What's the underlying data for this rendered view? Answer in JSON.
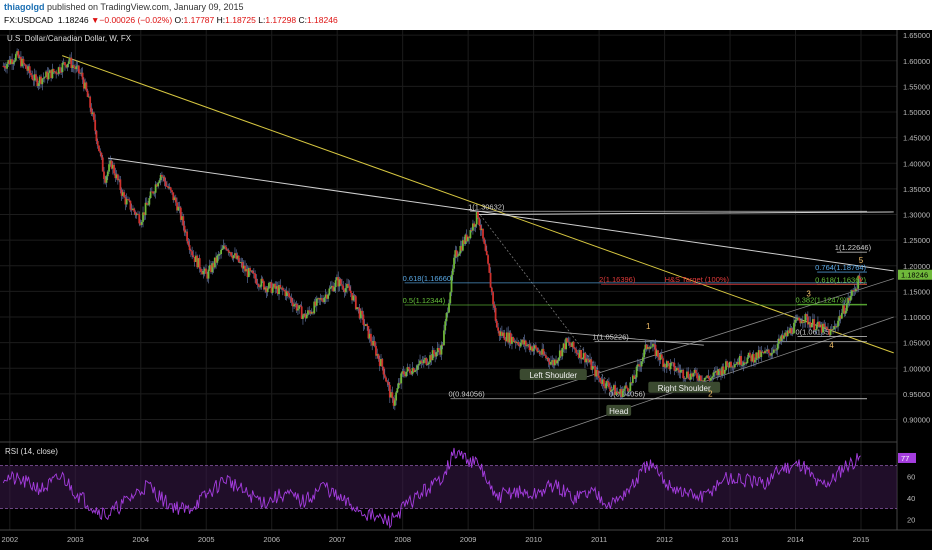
{
  "header": {
    "author": "thiagolgd",
    "published": "published on TradingView.com, January 09, 2015",
    "symbol": "FX:USDCAD",
    "last": "1.18246",
    "change": "−0.00026 (−0.02%)",
    "o_label": "O:",
    "o": "1.17787",
    "h_label": "H:",
    "h": "1.18725",
    "l_label": "L:",
    "l": "1.17298",
    "c_label": "C:",
    "c": "1.18246"
  },
  "colors": {
    "background": "#000000",
    "up_candle": "#6fb83a",
    "down_candle": "#d0312d",
    "trendline_yellow": "#d6c640",
    "trendline_white": "#cfcfcf",
    "fib_blue": "#5aa9e6",
    "fib_green": "#66c23a",
    "fib_red": "#e03a3a",
    "rsi_line": "#a53ddf",
    "rsi_band": "#3a1a4a"
  },
  "chart_data": [
    {
      "type": "candlestick",
      "title": "U.S. Dollar/Canadian Dollar, W, FX",
      "ylim": [
        0.86,
        1.66
      ],
      "y_ticks": [
        "1.65000",
        "1.60000",
        "1.55000",
        "1.50000",
        "1.45000",
        "1.40000",
        "1.35000",
        "1.30000",
        "1.25000",
        "1.20000",
        "1.15000",
        "1.10000",
        "1.05000",
        "1.00000",
        "0.95000",
        "0.90000"
      ],
      "x_ticks": [
        "2002",
        "2003",
        "2004",
        "2005",
        "2006",
        "2007",
        "2008",
        "2009",
        "2010",
        "2011",
        "2012",
        "2013",
        "2014",
        "2015"
      ],
      "last_price_label": "1.18246",
      "price_path": [
        [
          2001.9,
          1.59
        ],
        [
          2002.1,
          1.61
        ],
        [
          2002.4,
          1.56
        ],
        [
          2002.7,
          1.58
        ],
        [
          2002.9,
          1.6
        ],
        [
          2003.1,
          1.57
        ],
        [
          2003.25,
          1.5
        ],
        [
          2003.45,
          1.37
        ],
        [
          2003.55,
          1.4
        ],
        [
          2003.75,
          1.33
        ],
        [
          2004.0,
          1.29
        ],
        [
          2004.3,
          1.38
        ],
        [
          2004.55,
          1.32
        ],
        [
          2004.8,
          1.22
        ],
        [
          2005.0,
          1.18
        ],
        [
          2005.3,
          1.24
        ],
        [
          2005.6,
          1.19
        ],
        [
          2005.9,
          1.16
        ],
        [
          2006.2,
          1.15
        ],
        [
          2006.5,
          1.1
        ],
        [
          2006.8,
          1.14
        ],
        [
          2007.0,
          1.17
        ],
        [
          2007.2,
          1.15
        ],
        [
          2007.5,
          1.06
        ],
        [
          2007.7,
          1.0
        ],
        [
          2007.85,
          0.93
        ],
        [
          2008.0,
          0.99
        ],
        [
          2008.3,
          1.01
        ],
        [
          2008.6,
          1.04
        ],
        [
          2008.8,
          1.22
        ],
        [
          2009.0,
          1.26
        ],
        [
          2009.15,
          1.3
        ],
        [
          2009.3,
          1.2
        ],
        [
          2009.45,
          1.07
        ],
        [
          2009.8,
          1.05
        ],
        [
          2010.0,
          1.04
        ],
        [
          2010.3,
          1.01
        ],
        [
          2010.5,
          1.05
        ],
        [
          2010.8,
          1.02
        ],
        [
          2011.0,
          0.98
        ],
        [
          2011.3,
          0.95
        ],
        [
          2011.5,
          0.97
        ],
        [
          2011.75,
          1.05
        ],
        [
          2012.0,
          1.01
        ],
        [
          2012.3,
          0.99
        ],
        [
          2012.7,
          0.98
        ],
        [
          2013.0,
          1.01
        ],
        [
          2013.3,
          1.02
        ],
        [
          2013.6,
          1.03
        ],
        [
          2013.9,
          1.07
        ],
        [
          2014.1,
          1.1
        ],
        [
          2014.35,
          1.08
        ],
        [
          2014.55,
          1.07
        ],
        [
          2014.8,
          1.13
        ],
        [
          2015.0,
          1.18
        ]
      ],
      "trendlines": [
        {
          "color": "yellow",
          "from": [
            2002.8,
            1.61
          ],
          "to": [
            2015.5,
            1.03
          ]
        },
        {
          "color": "white",
          "from": [
            2003.5,
            1.41
          ],
          "to": [
            2015.5,
            1.19
          ]
        },
        {
          "color": "white",
          "from": [
            2009.15,
            1.3
          ],
          "to": [
            2015.5,
            1.305
          ]
        }
      ],
      "fib_levels": [
        {
          "label": "1(1.30632)",
          "value": 1.30632,
          "color": "#cfcfcf",
          "x_label": 2009.0
        },
        {
          "label": "0.618(1.16660)",
          "value": 1.1666,
          "color": "#5aa9e6",
          "x_label": 2008.0
        },
        {
          "label": "0.5(1.12344)",
          "value": 1.12344,
          "color": "#66c23a",
          "x_label": 2008.0
        },
        {
          "label": "1(1.22646)",
          "value": 1.22646,
          "color": "#cfcfcf",
          "x_label": 2014.6
        },
        {
          "label": "0.764(1.18764)",
          "value": 1.18764,
          "color": "#5aa9e6",
          "x_label": 2014.3
        },
        {
          "label": "0.618(1.16362)",
          "value": 1.16362,
          "color": "#66c23a",
          "x_label": 2014.3
        },
        {
          "label": "2(1.16396)",
          "value": 1.16396,
          "color": "#e03a3a",
          "x_label": 2011.0
        },
        {
          "label": "H&S Target (100%)",
          "value": 1.16396,
          "color": "#e03a3a",
          "x_label": 2012.0
        },
        {
          "label": "0.382(1.12479)",
          "value": 1.12479,
          "color": "#66c23a",
          "x_label": 2014.0
        },
        {
          "label": "1(1.05226)",
          "value": 1.05226,
          "color": "#cfcfcf",
          "x_label": 2010.9
        },
        {
          "label": "0(1.06185)",
          "value": 1.06185,
          "color": "#cfcfcf",
          "x_label": 2014.0
        },
        {
          "label": "0(0.94056)",
          "value": 0.94056,
          "color": "#cfcfcf",
          "x_label": 2008.7
        },
        {
          "label": "0(0.94056)",
          "value": 0.94056,
          "color": "#cfcfcf",
          "x_label": 2011.15
        }
      ],
      "annotations": [
        {
          "text": "Left Shoulder",
          "x": 2010.3,
          "y": 0.985
        },
        {
          "text": "Head",
          "x": 2011.3,
          "y": 0.915
        },
        {
          "text": "Right Shoulder",
          "x": 2012.3,
          "y": 0.96
        }
      ],
      "wave_labels": [
        {
          "text": "1",
          "x": 2011.75,
          "y": 1.077,
          "color": "#f4c16a"
        },
        {
          "text": "2",
          "x": 2012.7,
          "y": 0.945,
          "color": "#f4c16a"
        },
        {
          "text": "3",
          "x": 2014.2,
          "y": 1.14,
          "color": "#f4c16a"
        },
        {
          "text": "4",
          "x": 2014.55,
          "y": 1.04,
          "color": "#f4c16a"
        },
        {
          "text": "5",
          "x": 2015.0,
          "y": 1.205,
          "color": "#f4c16a"
        }
      ]
    },
    {
      "type": "line",
      "title": "RSI (14, close)",
      "ylim": [
        10,
        90
      ],
      "y_ticks": [
        "80",
        "60",
        "40",
        "20"
      ],
      "band": [
        30,
        70
      ],
      "last_value_label": "77",
      "rsi_path": [
        [
          2001.9,
          60
        ],
        [
          2002.2,
          55
        ],
        [
          2002.5,
          48
        ],
        [
          2002.8,
          60
        ],
        [
          2003.0,
          45
        ],
        [
          2003.3,
          30
        ],
        [
          2003.5,
          24
        ],
        [
          2003.8,
          38
        ],
        [
          2004.1,
          52
        ],
        [
          2004.4,
          35
        ],
        [
          2004.7,
          28
        ],
        [
          2005.0,
          42
        ],
        [
          2005.3,
          58
        ],
        [
          2005.6,
          44
        ],
        [
          2005.9,
          36
        ],
        [
          2006.2,
          44
        ],
        [
          2006.5,
          36
        ],
        [
          2006.8,
          52
        ],
        [
          2007.0,
          40
        ],
        [
          2007.3,
          30
        ],
        [
          2007.55,
          22
        ],
        [
          2007.8,
          18
        ],
        [
          2008.0,
          30
        ],
        [
          2008.3,
          45
        ],
        [
          2008.55,
          55
        ],
        [
          2008.8,
          82
        ],
        [
          2009.0,
          76
        ],
        [
          2009.2,
          68
        ],
        [
          2009.4,
          40
        ],
        [
          2009.7,
          46
        ],
        [
          2010.0,
          42
        ],
        [
          2010.3,
          52
        ],
        [
          2010.6,
          40
        ],
        [
          2010.9,
          46
        ],
        [
          2011.2,
          34
        ],
        [
          2011.5,
          50
        ],
        [
          2011.75,
          72
        ],
        [
          2012.0,
          55
        ],
        [
          2012.3,
          44
        ],
        [
          2012.6,
          40
        ],
        [
          2012.9,
          58
        ],
        [
          2013.2,
          56
        ],
        [
          2013.5,
          52
        ],
        [
          2013.8,
          68
        ],
        [
          2014.1,
          72
        ],
        [
          2014.35,
          52
        ],
        [
          2014.55,
          56
        ],
        [
          2014.75,
          70
        ],
        [
          2015.0,
          77
        ]
      ]
    }
  ]
}
